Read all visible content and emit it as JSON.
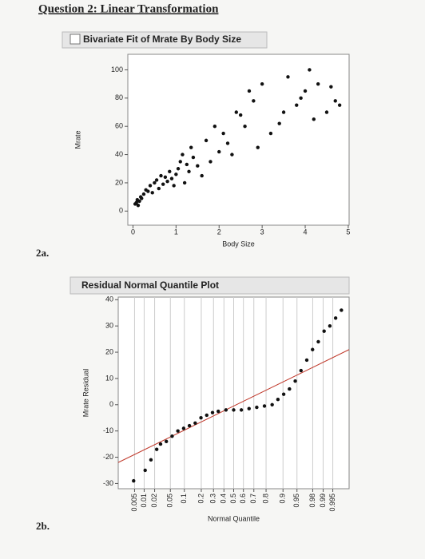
{
  "header": {
    "title": "Question 2: Linear Transformation"
  },
  "labels": [
    "2a.",
    "2b."
  ],
  "chart_data": [
    {
      "type": "scatter",
      "title": "Bivariate Fit of Mrate By Body Size",
      "x_label": "Body Size",
      "y_label": "Mrate",
      "color": "#111111",
      "xlim": [
        -0.12,
        5.02
      ],
      "ylim": [
        -10,
        111
      ],
      "xticks": [
        0,
        1,
        2,
        3,
        4,
        5
      ],
      "yticks": [
        0,
        20,
        40,
        60,
        80,
        100
      ],
      "x": [
        0.05,
        0.08,
        0.1,
        0.12,
        0.15,
        0.18,
        0.2,
        0.25,
        0.3,
        0.35,
        0.4,
        0.45,
        0.5,
        0.55,
        0.6,
        0.65,
        0.7,
        0.75,
        0.8,
        0.85,
        0.9,
        0.95,
        1.0,
        1.05,
        1.1,
        1.15,
        1.2,
        1.25,
        1.3,
        1.35,
        1.4,
        1.5,
        1.6,
        1.7,
        1.8,
        1.9,
        2.0,
        2.1,
        2.2,
        2.3,
        2.4,
        2.5,
        2.6,
        2.7,
        2.8,
        2.9,
        3.0,
        3.2,
        3.4,
        3.5,
        3.6,
        3.8,
        3.9,
        4.0,
        4.1,
        4.2,
        4.3,
        4.5,
        4.6,
        4.7,
        4.8
      ],
      "values": [
        5,
        6,
        8,
        4,
        7,
        10,
        9,
        12,
        15,
        14,
        18,
        13,
        20,
        22,
        16,
        25,
        19,
        24,
        21,
        28,
        23,
        18,
        26,
        30,
        35,
        40,
        20,
        33,
        28,
        45,
        38,
        32,
        25,
        50,
        35,
        60,
        42,
        55,
        48,
        40,
        70,
        68,
        60,
        85,
        78,
        45,
        90,
        55,
        62,
        70,
        95,
        75,
        80,
        85,
        100,
        65,
        90,
        70,
        88,
        78,
        75
      ]
    },
    {
      "type": "scatter",
      "title": "Residual Normal Quantile Plot",
      "x_label": "Normal Quantile",
      "y_label": "Mrate Residual",
      "color": "#111111",
      "xlim": [
        -3,
        3
      ],
      "ylim": [
        -32,
        41
      ],
      "grid": true,
      "xticks": [
        {
          "value": -2.576,
          "label": "0.005"
        },
        {
          "value": -2.326,
          "label": "0.01"
        },
        {
          "value": -2.054,
          "label": "0.02"
        },
        {
          "value": -1.645,
          "label": "0.05"
        },
        {
          "value": -1.282,
          "label": "0.1"
        },
        {
          "value": -0.842,
          "label": "0.2"
        },
        {
          "value": -0.524,
          "label": "0.3"
        },
        {
          "value": -0.253,
          "label": "0.4"
        },
        {
          "value": 0,
          "label": "0.5"
        },
        {
          "value": 0.253,
          "label": "0.6"
        },
        {
          "value": 0.524,
          "label": "0.7"
        },
        {
          "value": 0.842,
          "label": "0.8"
        },
        {
          "value": 1.282,
          "label": "0.9"
        },
        {
          "value": 1.645,
          "label": "0.95"
        },
        {
          "value": 2.054,
          "label": "0.98"
        },
        {
          "value": 2.326,
          "label": "0.99"
        },
        {
          "value": 2.576,
          "label": "0.995"
        }
      ],
      "yticks": [
        -30,
        -20,
        -10,
        0,
        10,
        20,
        30,
        40
      ],
      "x": [
        -2.6,
        -2.3,
        -2.15,
        -2.0,
        -1.9,
        -1.75,
        -1.6,
        -1.45,
        -1.3,
        -1.15,
        -1.0,
        -0.85,
        -0.7,
        -0.55,
        -0.4,
        -0.2,
        0,
        0.2,
        0.4,
        0.6,
        0.8,
        1.0,
        1.15,
        1.3,
        1.45,
        1.6,
        1.75,
        1.9,
        2.05,
        2.2,
        2.35,
        2.5,
        2.65,
        2.8
      ],
      "values": [
        -29,
        -25,
        -21,
        -17,
        -15,
        -14,
        -12,
        -10,
        -9,
        -8,
        -7,
        -5,
        -4,
        -3,
        -2.5,
        -2,
        -2,
        -2,
        -1.5,
        -1,
        -0.5,
        0,
        2,
        4,
        6,
        9,
        13,
        17,
        21,
        24,
        28,
        30,
        33,
        36
      ],
      "fit_line": {
        "color": "#c0392b",
        "x": [
          -3,
          3
        ],
        "y": [
          -22,
          21
        ]
      }
    }
  ]
}
